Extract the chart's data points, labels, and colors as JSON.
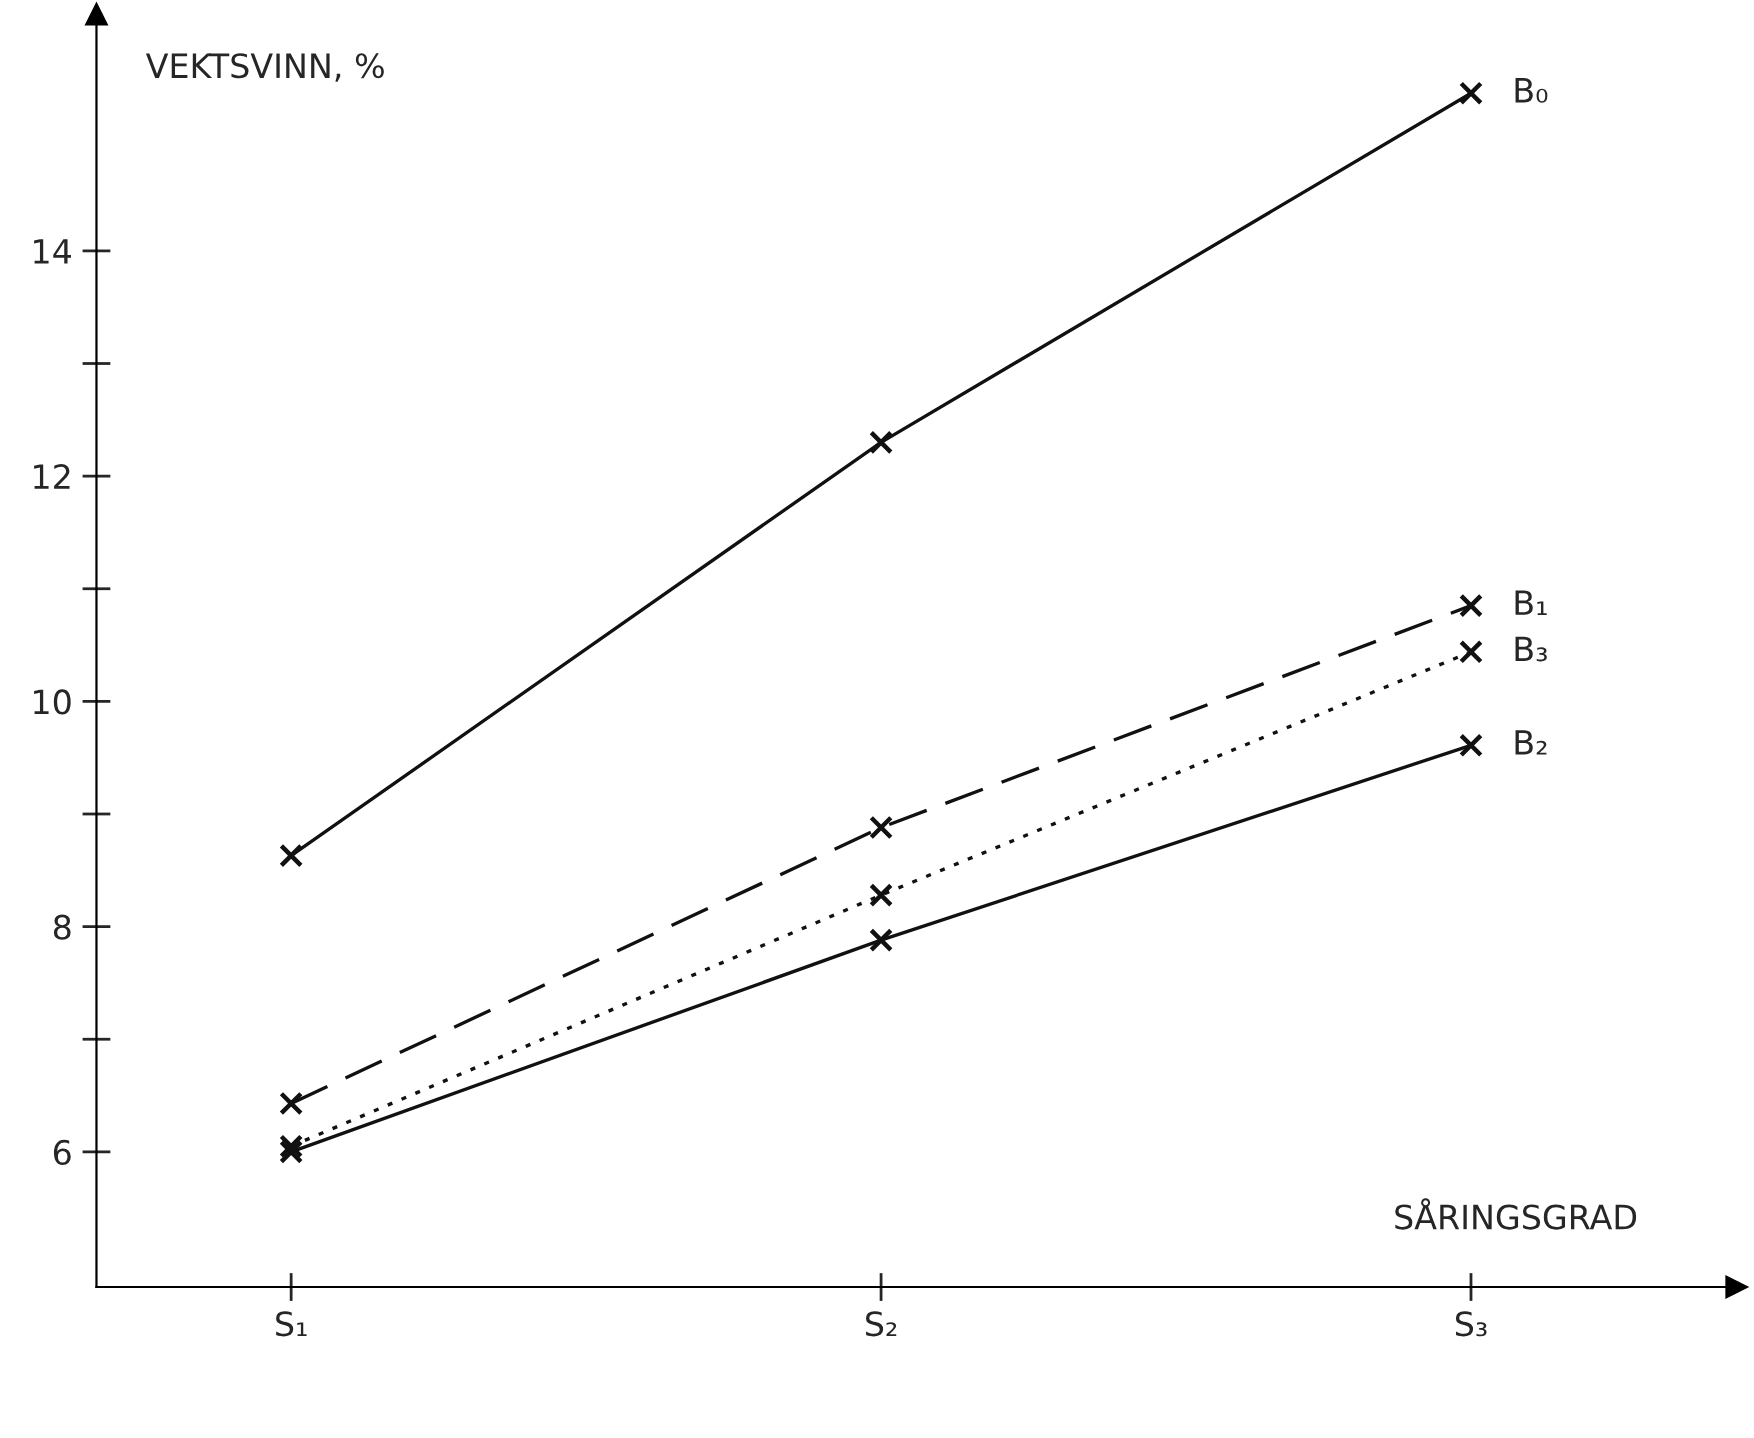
{
  "chart_data": {
    "type": "line",
    "ylabel": "VEKTSVINN, %",
    "xlabel": "SÅRINGSGRAD",
    "categories": [
      "S₁",
      "S₂",
      "S₃"
    ],
    "series": [
      {
        "name": "B₀",
        "color": "#111111",
        "line_style": "solid",
        "values": [
          8.63,
          12.3,
          15.4
        ]
      },
      {
        "name": "B₁",
        "color": "#111111",
        "line_style": "dashed",
        "values": [
          6.43,
          8.88,
          10.85
        ]
      },
      {
        "name": "B₃",
        "color": "#111111",
        "line_style": "dotted",
        "values": [
          6.05,
          8.28,
          10.44
        ]
      },
      {
        "name": "B₂",
        "color": "#111111",
        "line_style": "solid",
        "values": [
          6.0,
          7.88,
          9.61
        ]
      }
    ],
    "marker": "cross",
    "ylim": [
      4.8,
      16.1
    ],
    "yticks": [
      6,
      {
        "value": 7,
        "label": null
      },
      8,
      {
        "value": 9,
        "label": null
      },
      10,
      {
        "value": 11,
        "label": null
      },
      12,
      {
        "value": 13,
        "label": null
      },
      14
    ],
    "grid": false,
    "legend": false
  }
}
